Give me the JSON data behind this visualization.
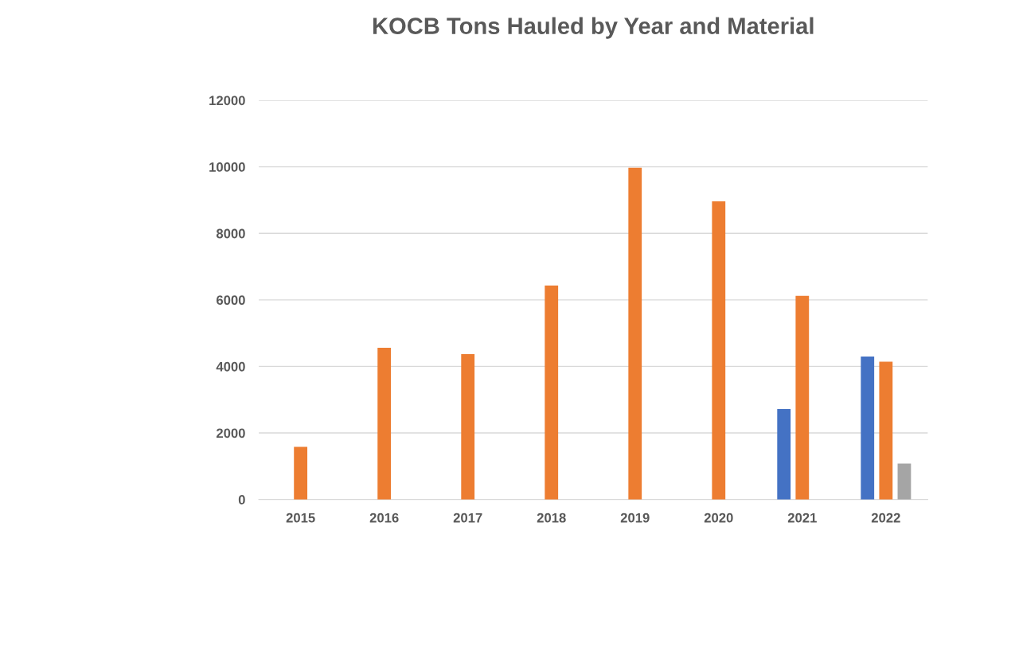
{
  "chart_data": {
    "type": "bar",
    "title": "KOCB Tons Hauled by Year and Material",
    "categories": [
      "2015",
      "2016",
      "2017",
      "2018",
      "2019",
      "2020",
      "2021",
      "2022"
    ],
    "series": [
      {
        "color": "#4472c4",
        "values": [
          null,
          null,
          null,
          null,
          null,
          null,
          2720,
          4300
        ]
      },
      {
        "color": "#ed7d31",
        "values": [
          1580,
          4560,
          4370,
          6430,
          9970,
          8960,
          6120,
          4140
        ]
      },
      {
        "color": "#a5a5a5",
        "values": [
          null,
          null,
          null,
          null,
          null,
          null,
          null,
          1080
        ]
      }
    ],
    "ylim": [
      0,
      12000
    ],
    "yticks": [
      0,
      2000,
      4000,
      6000,
      8000,
      10000,
      12000
    ],
    "grid": "y"
  }
}
